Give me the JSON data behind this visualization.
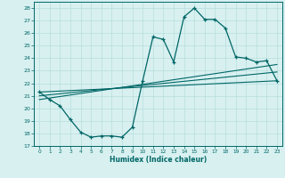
{
  "xlabel": "Humidex (Indice chaleur)",
  "bg_color": "#d8f0f0",
  "line_color": "#006666",
  "grid_color": "#b8dede",
  "xlim": [
    -0.5,
    23.5
  ],
  "ylim": [
    17,
    28.5
  ],
  "xticks": [
    0,
    1,
    2,
    3,
    4,
    5,
    6,
    7,
    8,
    9,
    10,
    11,
    12,
    13,
    14,
    15,
    16,
    17,
    18,
    19,
    20,
    21,
    22,
    23
  ],
  "yticks": [
    17,
    18,
    19,
    20,
    21,
    22,
    23,
    24,
    25,
    26,
    27,
    28
  ],
  "line1_x": [
    0,
    1,
    2,
    3,
    4,
    5,
    6,
    7,
    8,
    9,
    10,
    11,
    12,
    13,
    14,
    15,
    16,
    17,
    18,
    19,
    20,
    21,
    22,
    23
  ],
  "line1_y": [
    21.3,
    20.7,
    20.2,
    19.1,
    18.1,
    17.7,
    17.8,
    17.8,
    17.7,
    18.5,
    22.2,
    25.7,
    25.5,
    23.7,
    27.3,
    28.0,
    27.1,
    27.1,
    26.4,
    24.1,
    24.0,
    23.7,
    23.8,
    22.2
  ],
  "line2_x": [
    0,
    23
  ],
  "line2_y": [
    21.3,
    22.2
  ],
  "line3_x": [
    0,
    23
  ],
  "line3_y": [
    21.0,
    22.9
  ],
  "line4_x": [
    0,
    23
  ],
  "line4_y": [
    20.7,
    23.5
  ]
}
